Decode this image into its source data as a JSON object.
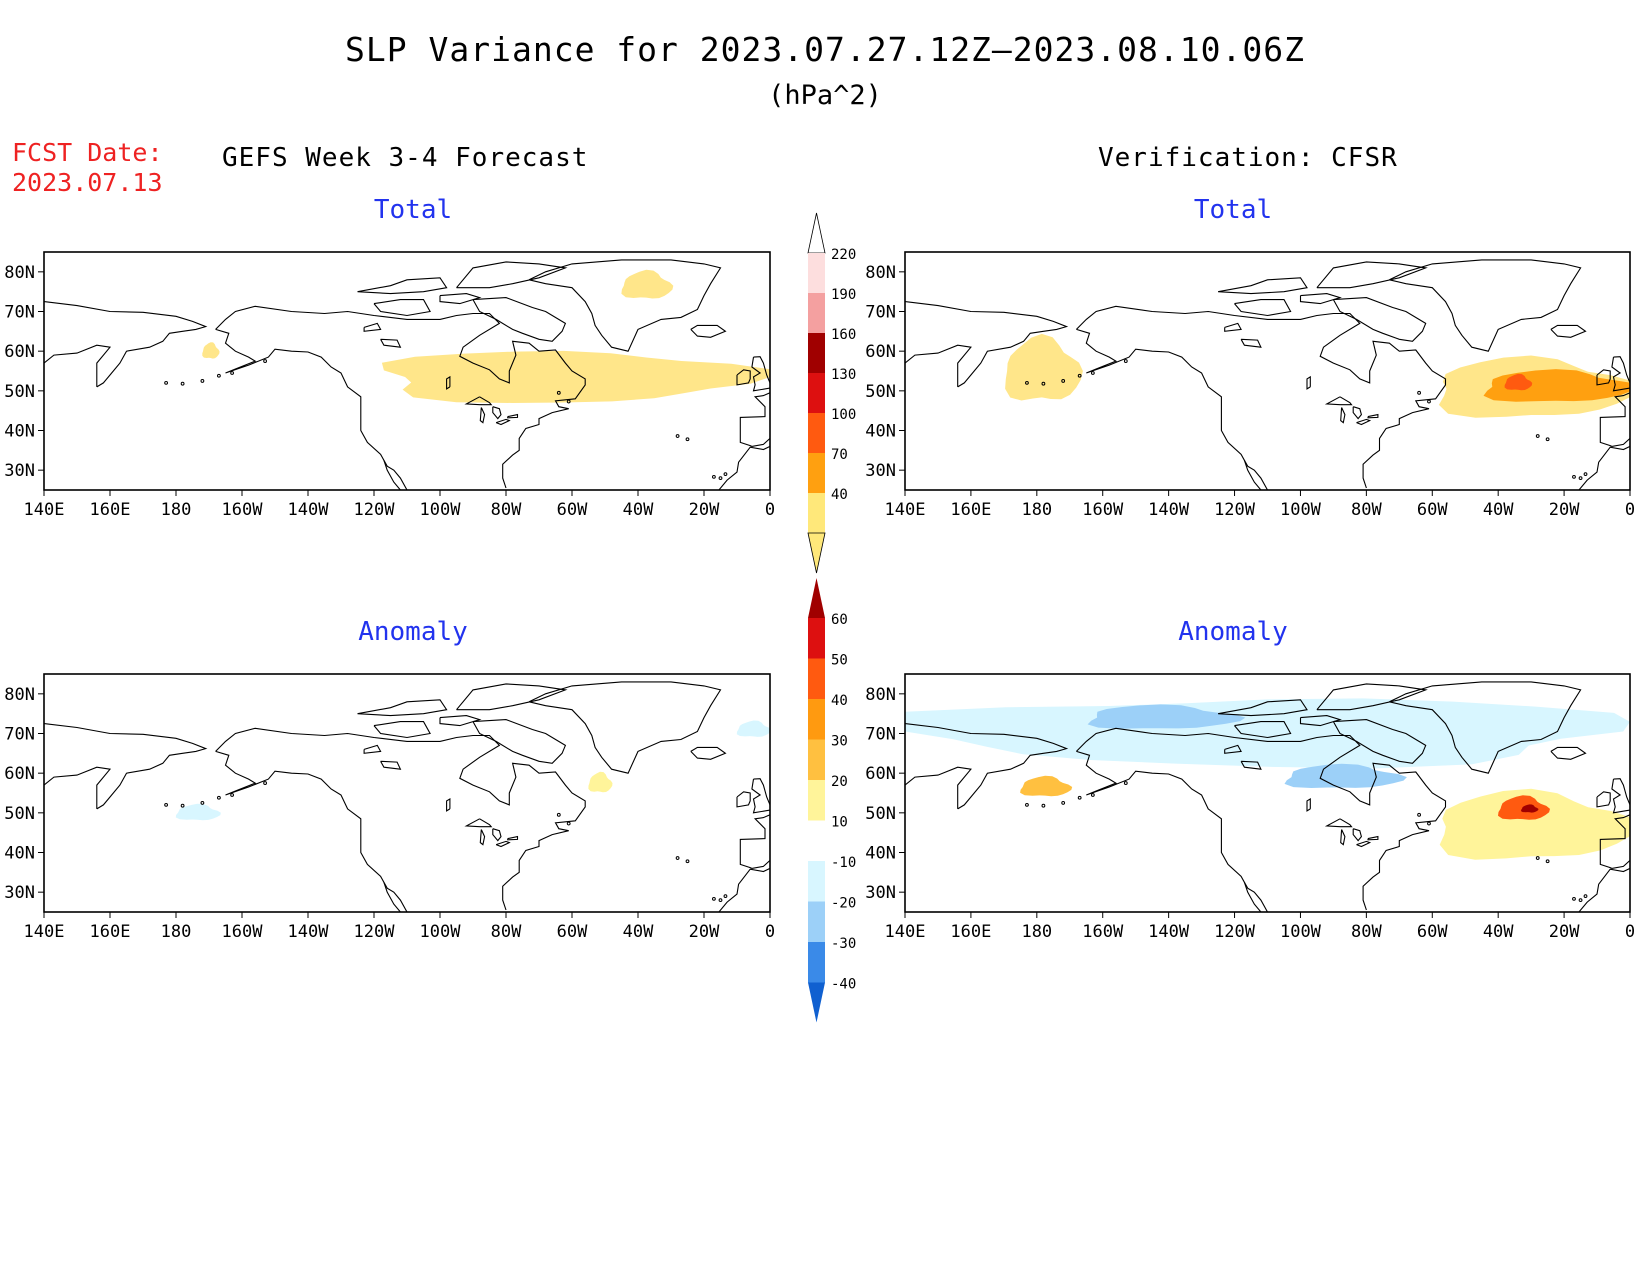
{
  "figure": {
    "title": "SLP Variance for 2023.07.27.12Z—2023.08.10.06Z",
    "units": "(hPa^2)",
    "fcst_date_label": "FCST Date:",
    "fcst_date_value": "2023.07.13",
    "left_heading": "GEFS Week 3-4 Forecast",
    "right_heading": "Verification: CFSR"
  },
  "chart_data": [
    {
      "type": "heatmap",
      "title": "Total",
      "source": "GEFS Week 3-4 Forecast",
      "x_ticks": [
        "140E",
        "160E",
        "180",
        "160W",
        "140W",
        "120W",
        "100W",
        "80W",
        "60W",
        "40W",
        "20W",
        "0"
      ],
      "y_ticks": [
        "80N",
        "70N",
        "60N",
        "50N",
        "40N",
        "30N"
      ],
      "xlim": [
        140,
        360
      ],
      "ylim": [
        25,
        85
      ],
      "regions": [
        {
          "level": 40,
          "lon": [
            -120,
            -5
          ],
          "lat": [
            47,
            60
          ]
        },
        {
          "level": 40,
          "lon": [
            -45,
            -30
          ],
          "lat": [
            73,
            80
          ]
        },
        {
          "level": 40,
          "lon": [
            -172,
            -167
          ],
          "lat": [
            58,
            62
          ]
        }
      ]
    },
    {
      "type": "heatmap",
      "title": "Total",
      "source": "Verification: CFSR",
      "x_ticks": [
        "140E",
        "160E",
        "180",
        "160W",
        "140W",
        "120W",
        "100W",
        "80W",
        "60W",
        "40W",
        "20W",
        "0"
      ],
      "y_ticks": [
        "80N",
        "70N",
        "60N",
        "50N",
        "40N",
        "30N"
      ],
      "xlim": [
        140,
        360
      ],
      "ylim": [
        25,
        85
      ],
      "regions": [
        {
          "level": 40,
          "lon": [
            170,
            193
          ],
          "lat": [
            47,
            63
          ]
        },
        {
          "level": 40,
          "lon": [
            -60,
            0
          ],
          "lat": [
            43,
            58
          ]
        },
        {
          "level": 70,
          "lon": [
            -45,
            0
          ],
          "lat": [
            47,
            55
          ]
        },
        {
          "level": 100,
          "lon": [
            -38,
            -30
          ],
          "lat": [
            50,
            54
          ]
        }
      ]
    },
    {
      "type": "heatmap",
      "title": "Anomaly",
      "source": "GEFS Week 3-4 Forecast",
      "x_ticks": [
        "140E",
        "160E",
        "180",
        "160W",
        "140W",
        "120W",
        "100W",
        "80W",
        "60W",
        "40W",
        "20W",
        "0"
      ],
      "y_ticks": [
        "80N",
        "70N",
        "60N",
        "50N",
        "40N",
        "30N"
      ],
      "xlim": [
        140,
        360
      ],
      "ylim": [
        25,
        85
      ],
      "regions": [
        {
          "level": -10,
          "lon": [
            -180,
            -167
          ],
          "lat": [
            48,
            52
          ]
        },
        {
          "level": 10,
          "lon": [
            -55,
            -48
          ],
          "lat": [
            55,
            60
          ]
        },
        {
          "level": -10,
          "lon": [
            -10,
            0
          ],
          "lat": [
            69,
            73
          ]
        }
      ]
    },
    {
      "type": "heatmap",
      "title": "Anomaly",
      "source": "Verification: CFSR",
      "x_ticks": [
        "140E",
        "160E",
        "180",
        "160W",
        "140W",
        "120W",
        "100W",
        "80W",
        "60W",
        "40W",
        "20W",
        "0"
      ],
      "y_ticks": [
        "80N",
        "70N",
        "60N",
        "50N",
        "40N",
        "30N"
      ],
      "xlim": [
        140,
        360
      ],
      "ylim": [
        25,
        85
      ],
      "regions": [
        {
          "level": -10,
          "lon": [
            140,
            360
          ],
          "lat": [
            62,
            79
          ]
        },
        {
          "level": -20,
          "lon": [
            -165,
            -120
          ],
          "lat": [
            71,
            77
          ]
        },
        {
          "level": -20,
          "lon": [
            -105,
            -70
          ],
          "lat": [
            56,
            62
          ]
        },
        {
          "level": 20,
          "lon": [
            -185,
            -170
          ],
          "lat": [
            54,
            59
          ]
        },
        {
          "level": 10,
          "lon": [
            -60,
            0
          ],
          "lat": [
            38,
            55
          ]
        },
        {
          "level": 40,
          "lon": [
            -40,
            -25
          ],
          "lat": [
            48,
            54
          ]
        },
        {
          "level": 60,
          "lon": [
            -33,
            -28
          ],
          "lat": [
            50,
            52
          ]
        }
      ]
    }
  ],
  "colorbars": [
    {
      "name": "total",
      "labels": [
        "220",
        "190",
        "160",
        "130",
        "100",
        "70",
        "40"
      ],
      "colors": [
        "#fddede",
        "#f4a0a0",
        "#a00000",
        "#dd1010",
        "#ff5a10",
        "#ffa010",
        "#ffe87a"
      ]
    },
    {
      "name": "anomaly",
      "labels": [
        "60",
        "50",
        "40",
        "30",
        "20",
        "10",
        "-10",
        "-20",
        "-30",
        "-40"
      ],
      "colors": [
        "#a00000",
        "#dd1010",
        "#ff5a10",
        "#ff9a10",
        "#ffc040",
        "#fff49a",
        "#ffffff",
        "#d8f6ff",
        "#9cd0f8",
        "#3a8ae8",
        "#1060d0"
      ]
    }
  ],
  "palette": {
    "t40": "#ffe68a",
    "t70": "#ffa010",
    "t100": "#ff5a10",
    "a_pos10": "#fff49a",
    "a_pos20": "#ffc040",
    "a_pos30": "#ff9a10",
    "a_pos40": "#ff5a10",
    "a_pos50": "#dd1010",
    "a_pos60": "#a00000",
    "a_neg10": "#d8f6ff",
    "a_neg20": "#9cd0f8",
    "a_neg30": "#3a8ae8"
  }
}
